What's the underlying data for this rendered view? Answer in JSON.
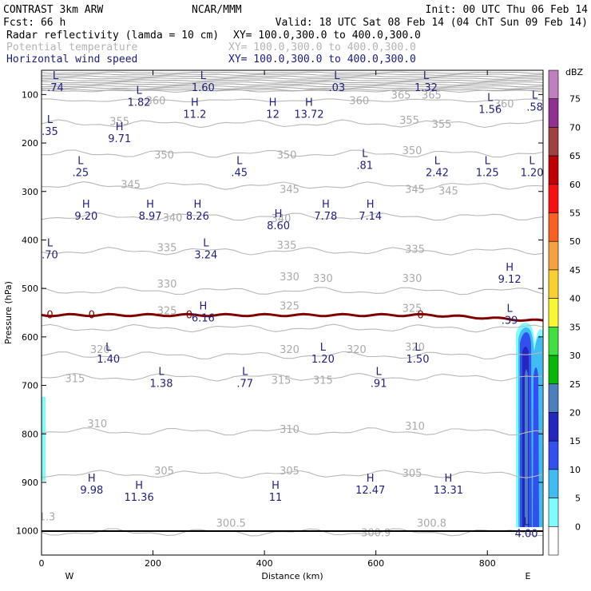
{
  "header": {
    "title_left": "CONTRAST  3km ARW",
    "org": "NCAR/MMM",
    "init": "Init: 00 UTC Thu 06 Feb 14",
    "fcst": "Fcst:    66 h",
    "valid": "Valid: 18 UTC Sat 08 Feb 14 (04 ChT Sun 09 Feb 14)",
    "fields": [
      {
        "name": "Radar reflectivity (lamda = 10 cm)",
        "xy": "XY= 100.0,300.0 to 400.0,300.0",
        "color": "#000000"
      },
      {
        "name": "Potential temperature",
        "xy": "XY= 100.0,300.0 to 400.0,300.0",
        "color": "#b4b4b4"
      },
      {
        "name": "Horizontal wind speed",
        "xy": "XY= 100.0,300.0 to 400.0,300.0",
        "color": "#1a1a80"
      }
    ]
  },
  "chart_data": {
    "type": "cross-section",
    "xlabel": "Distance (km)",
    "ylabel": "Pressure (hPa)",
    "xlim": [
      0,
      900
    ],
    "ylim": [
      1050,
      50
    ],
    "xticks": [
      0,
      200,
      400,
      600,
      800
    ],
    "yticks": [
      100,
      200,
      300,
      400,
      500,
      600,
      700,
      800,
      900,
      1000
    ],
    "end_labels": {
      "left": "W",
      "right": "E"
    },
    "colorbar": {
      "unit": "dBZ",
      "levels": [
        0,
        5,
        10,
        15,
        20,
        25,
        30,
        35,
        40,
        45,
        50,
        55,
        60,
        65,
        70,
        75
      ],
      "colors": [
        "#ffffff",
        "#7ffdfd",
        "#3fbcf4",
        "#3250f0",
        "#2525c0",
        "#4a80c0",
        "#07b807",
        "#40e040",
        "#f8f830",
        "#fad030",
        "#f8a040",
        "#fa6020",
        "#f81010",
        "#c00000",
        "#a04040",
        "#903090",
        "#c080c0"
      ]
    },
    "theta_contours": [
      {
        "value": 300,
        "p": 1003
      },
      {
        "value": 305,
        "p": 883
      },
      {
        "value": 310,
        "p": 795
      },
      {
        "value": 315,
        "p": 683
      },
      {
        "value": 320,
        "p": 638
      },
      {
        "value": 325,
        "p": 582
      },
      {
        "value": 330,
        "p": 505
      },
      {
        "value": 335,
        "p": 423
      },
      {
        "value": 340,
        "p": 352
      },
      {
        "value": 345,
        "p": 288
      },
      {
        "value": 350,
        "p": 222
      },
      {
        "value": 355,
        "p": 160
      },
      {
        "value": 360,
        "p": 112
      },
      {
        "value": 365,
        "p": 92
      }
    ],
    "theta_labels": [
      {
        "text": "360",
        "x": 205,
        "p": 112
      },
      {
        "text": "360",
        "x": 570,
        "p": 112
      },
      {
        "text": "365",
        "x": 645,
        "p": 100
      },
      {
        "text": "365",
        "x": 700,
        "p": 100
      },
      {
        "text": "360",
        "x": 830,
        "p": 118
      },
      {
        "text": "355",
        "x": 140,
        "p": 155
      },
      {
        "text": "355",
        "x": 660,
        "p": 152
      },
      {
        "text": "355",
        "x": 718,
        "p": 160
      },
      {
        "text": "350",
        "x": 220,
        "p": 224
      },
      {
        "text": "350",
        "x": 440,
        "p": 224
      },
      {
        "text": "350",
        "x": 665,
        "p": 215
      },
      {
        "text": "345",
        "x": 160,
        "p": 285
      },
      {
        "text": "345",
        "x": 445,
        "p": 295
      },
      {
        "text": "345",
        "x": 670,
        "p": 295
      },
      {
        "text": "345",
        "x": 730,
        "p": 298
      },
      {
        "text": "340",
        "x": 235,
        "p": 353
      },
      {
        "text": "340",
        "x": 430,
        "p": 355
      },
      {
        "text": "335",
        "x": 225,
        "p": 415
      },
      {
        "text": "335",
        "x": 440,
        "p": 410
      },
      {
        "text": "335",
        "x": 670,
        "p": 418
      },
      {
        "text": "330",
        "x": 225,
        "p": 490
      },
      {
        "text": "330",
        "x": 445,
        "p": 475
      },
      {
        "text": "330",
        "x": 505,
        "p": 478
      },
      {
        "text": "330",
        "x": 665,
        "p": 478
      },
      {
        "text": "325",
        "x": 225,
        "p": 545
      },
      {
        "text": "325",
        "x": 445,
        "p": 535
      },
      {
        "text": "325",
        "x": 665,
        "p": 540
      },
      {
        "text": "320",
        "x": 105,
        "p": 625
      },
      {
        "text": "320",
        "x": 445,
        "p": 625
      },
      {
        "text": "320",
        "x": 565,
        "p": 625
      },
      {
        "text": "320",
        "x": 670,
        "p": 620
      },
      {
        "text": "315",
        "x": 60,
        "p": 685
      },
      {
        "text": "315",
        "x": 430,
        "p": 688
      },
      {
        "text": "315",
        "x": 505,
        "p": 688
      },
      {
        "text": "310",
        "x": 100,
        "p": 778
      },
      {
        "text": "310",
        "x": 445,
        "p": 790
      },
      {
        "text": "310",
        "x": 670,
        "p": 783
      },
      {
        "text": "305",
        "x": 220,
        "p": 875
      },
      {
        "text": "305",
        "x": 445,
        "p": 875
      },
      {
        "text": "305",
        "x": 665,
        "p": 880
      },
      {
        "text": "300.5",
        "x": 340,
        "p": 983
      },
      {
        "text": "300.9",
        "x": 600,
        "p": 1003
      },
      {
        "text": "300.8",
        "x": 700,
        "p": 983
      }
    ],
    "freezing_line": {
      "label": "0",
      "p": 555
    },
    "wind_extrema": [
      {
        "type": "L",
        "value": ".74",
        "x": 25,
        "p": 80
      },
      {
        "type": "L",
        "value": "1.60",
        "x": 290,
        "p": 80
      },
      {
        "type": "L",
        "value": ".03",
        "x": 530,
        "p": 80
      },
      {
        "type": "L",
        "value": "1.32",
        "x": 690,
        "p": 80
      },
      {
        "type": "L",
        "value": "1.82",
        "x": 175,
        "p": 110
      },
      {
        "type": "H",
        "value": "11.2",
        "x": 275,
        "p": 135
      },
      {
        "type": "H",
        "value": "12",
        "x": 415,
        "p": 135
      },
      {
        "type": "H",
        "value": "13.72",
        "x": 480,
        "p": 135
      },
      {
        "type": "L",
        "value": "1.56",
        "x": 805,
        "p": 125
      },
      {
        "type": "L",
        "value": ".58",
        "x": 885,
        "p": 120
      },
      {
        "type": "L",
        "value": ".35",
        "x": 15,
        "p": 170
      },
      {
        "type": "H",
        "value": "9.71",
        "x": 140,
        "p": 185
      },
      {
        "type": "L",
        "value": ".25",
        "x": 70,
        "p": 255
      },
      {
        "type": "L",
        "value": ".45",
        "x": 355,
        "p": 255
      },
      {
        "type": "L",
        "value": ".81",
        "x": 580,
        "p": 240
      },
      {
        "type": "L",
        "value": "2.42",
        "x": 710,
        "p": 255
      },
      {
        "type": "L",
        "value": "1.25",
        "x": 800,
        "p": 255
      },
      {
        "type": "L",
        "value": "1.20",
        "x": 880,
        "p": 255
      },
      {
        "type": "H",
        "value": "9.20",
        "x": 80,
        "p": 345
      },
      {
        "type": "H",
        "value": "8.97",
        "x": 195,
        "p": 345
      },
      {
        "type": "H",
        "value": "8.26",
        "x": 280,
        "p": 345
      },
      {
        "type": "H",
        "value": "8.60",
        "x": 425,
        "p": 365
      },
      {
        "type": "H",
        "value": "7.78",
        "x": 510,
        "p": 345
      },
      {
        "type": "H",
        "value": "7.14",
        "x": 590,
        "p": 345
      },
      {
        "type": "L",
        "value": ".70",
        "x": 15,
        "p": 425
      },
      {
        "type": "L",
        "value": "3.24",
        "x": 295,
        "p": 425
      },
      {
        "type": "H",
        "value": "9.12",
        "x": 840,
        "p": 475
      },
      {
        "type": "H",
        "value": "6.16",
        "x": 290,
        "p": 555
      },
      {
        "type": "L",
        "value": ".39",
        "x": 840,
        "p": 560
      },
      {
        "type": "L",
        "value": "1.40",
        "x": 120,
        "p": 640
      },
      {
        "type": "L",
        "value": "1.20",
        "x": 505,
        "p": 640
      },
      {
        "type": "L",
        "value": "1.50",
        "x": 675,
        "p": 640
      },
      {
        "type": "L",
        "value": "1.38",
        "x": 215,
        "p": 690
      },
      {
        "type": "L",
        "value": ".77",
        "x": 365,
        "p": 690
      },
      {
        "type": "L",
        "value": ".91",
        "x": 605,
        "p": 690
      },
      {
        "type": "H",
        "value": "9.98",
        "x": 90,
        "p": 910
      },
      {
        "type": "H",
        "value": "11.36",
        "x": 175,
        "p": 925
      },
      {
        "type": "H",
        "value": "11",
        "x": 420,
        "p": 925
      },
      {
        "type": "H",
        "value": "12.47",
        "x": 590,
        "p": 910
      },
      {
        "type": "H",
        "value": "13.31",
        "x": 730,
        "p": 910
      },
      {
        "type": "L",
        "value": "4.00",
        "x": 870,
        "p": 1000
      }
    ],
    "residual_labels": [
      {
        "text": "1.3",
        "x": 10,
        "p": 970
      }
    ]
  }
}
